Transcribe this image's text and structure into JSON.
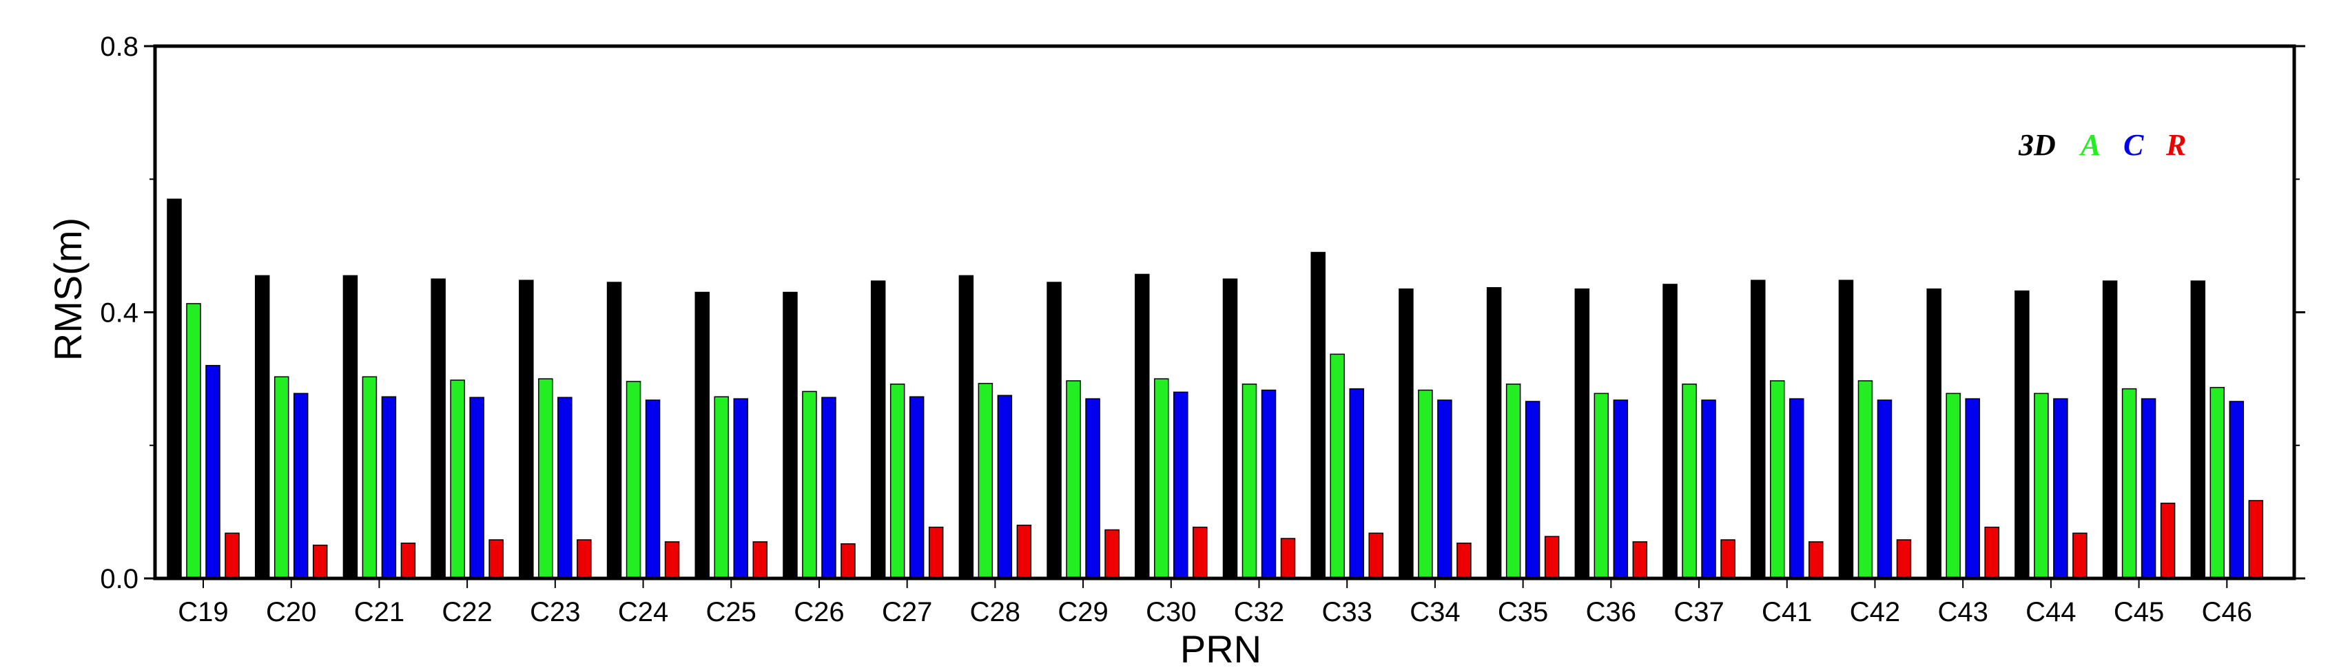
{
  "chart_data": {
    "type": "bar",
    "xlabel": "PRN",
    "ylabel": "RMS(m)",
    "ylim": [
      0.0,
      0.8
    ],
    "yticks": [
      "0.0",
      "0.4",
      "0.8"
    ],
    "grid": false,
    "legend_position": "top-right",
    "categories": [
      "C19",
      "C20",
      "C21",
      "C22",
      "C23",
      "C24",
      "C25",
      "C26",
      "C27",
      "C28",
      "C29",
      "C30",
      "C32",
      "C33",
      "C34",
      "C35",
      "C36",
      "C37",
      "C41",
      "C42",
      "C43",
      "C44",
      "C45",
      "C46"
    ],
    "series": [
      {
        "name": "3D",
        "color": "#000000",
        "values": [
          0.57,
          0.455,
          0.455,
          0.45,
          0.448,
          0.445,
          0.43,
          0.43,
          0.447,
          0.455,
          0.445,
          0.457,
          0.45,
          0.49,
          0.435,
          0.437,
          0.435,
          0.442,
          0.448,
          0.448,
          0.435,
          0.432,
          0.447,
          0.447
        ]
      },
      {
        "name": "A",
        "color": "#22ee22",
        "values": [
          0.413,
          0.303,
          0.303,
          0.298,
          0.3,
          0.296,
          0.273,
          0.281,
          0.292,
          0.293,
          0.297,
          0.3,
          0.292,
          0.337,
          0.283,
          0.292,
          0.278,
          0.292,
          0.297,
          0.297,
          0.278,
          0.278,
          0.285,
          0.287
        ]
      },
      {
        "name": "C",
        "color": "#0000ee",
        "values": [
          0.32,
          0.278,
          0.273,
          0.272,
          0.272,
          0.268,
          0.27,
          0.272,
          0.273,
          0.275,
          0.27,
          0.28,
          0.283,
          0.285,
          0.268,
          0.266,
          0.268,
          0.268,
          0.27,
          0.268,
          0.27,
          0.27,
          0.27,
          0.266
        ]
      },
      {
        "name": "R",
        "color": "#ee0000",
        "values": [
          0.068,
          0.05,
          0.053,
          0.058,
          0.058,
          0.055,
          0.055,
          0.052,
          0.077,
          0.08,
          0.073,
          0.077,
          0.06,
          0.068,
          0.053,
          0.063,
          0.055,
          0.058,
          0.055,
          0.058,
          0.077,
          0.068,
          0.113,
          0.117
        ]
      }
    ]
  }
}
